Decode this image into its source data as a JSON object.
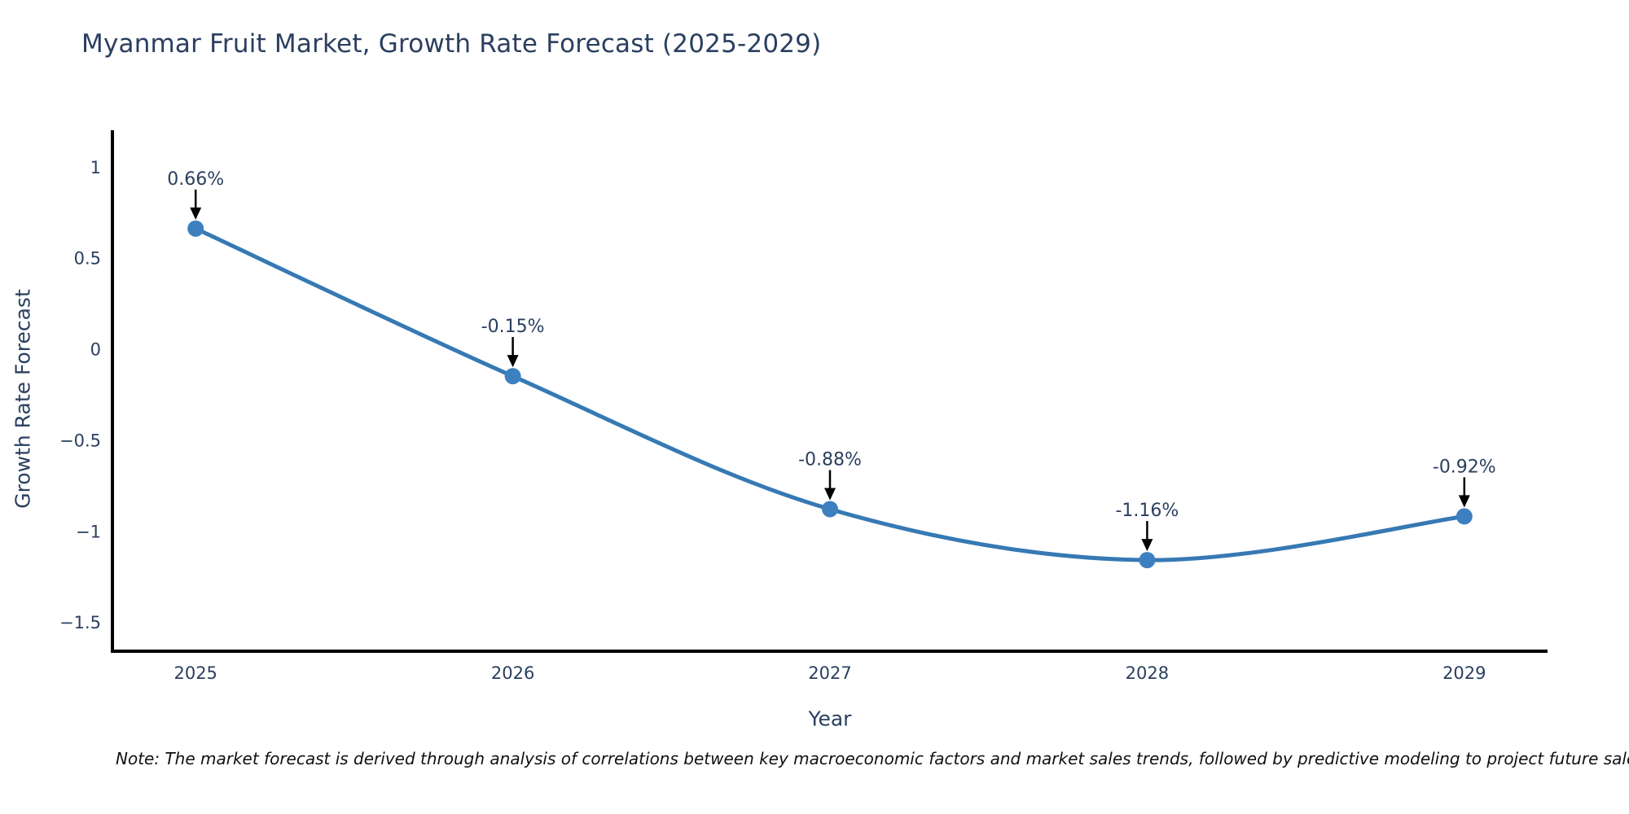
{
  "note": "Note: The market forecast is derived through analysis of correlations between key macroeconomic factors and market sales trends, followed by predictive modeling to project future sales",
  "chart_data": {
    "type": "line",
    "title": "Myanmar Fruit Market, Growth Rate Forecast (2025-2029)",
    "xlabel": "Year",
    "ylabel": "Growth Rate Forecast",
    "categories": [
      "2025",
      "2026",
      "2027",
      "2028",
      "2029"
    ],
    "values": [
      0.66,
      -0.15,
      -0.88,
      -1.16,
      -0.92
    ],
    "point_labels": [
      "0.66%",
      "-0.15%",
      "-0.88%",
      "-1.16%",
      "-0.92%"
    ],
    "yticks": [
      1,
      0.5,
      0,
      -0.5,
      -1,
      -1.5
    ],
    "ytick_labels": [
      "1",
      "0.5",
      "0",
      "−0.5",
      "−1",
      "−1.5"
    ],
    "ylim": [
      -1.66,
      1.2
    ],
    "line_shape": "spline",
    "grid": false,
    "legend": "none",
    "line_color": "#3679b4",
    "marker_color": "#3d80c0",
    "axis_color": "#000000",
    "text_color": "#2a3f5f",
    "annotation_arrow_color": "#000000"
  }
}
